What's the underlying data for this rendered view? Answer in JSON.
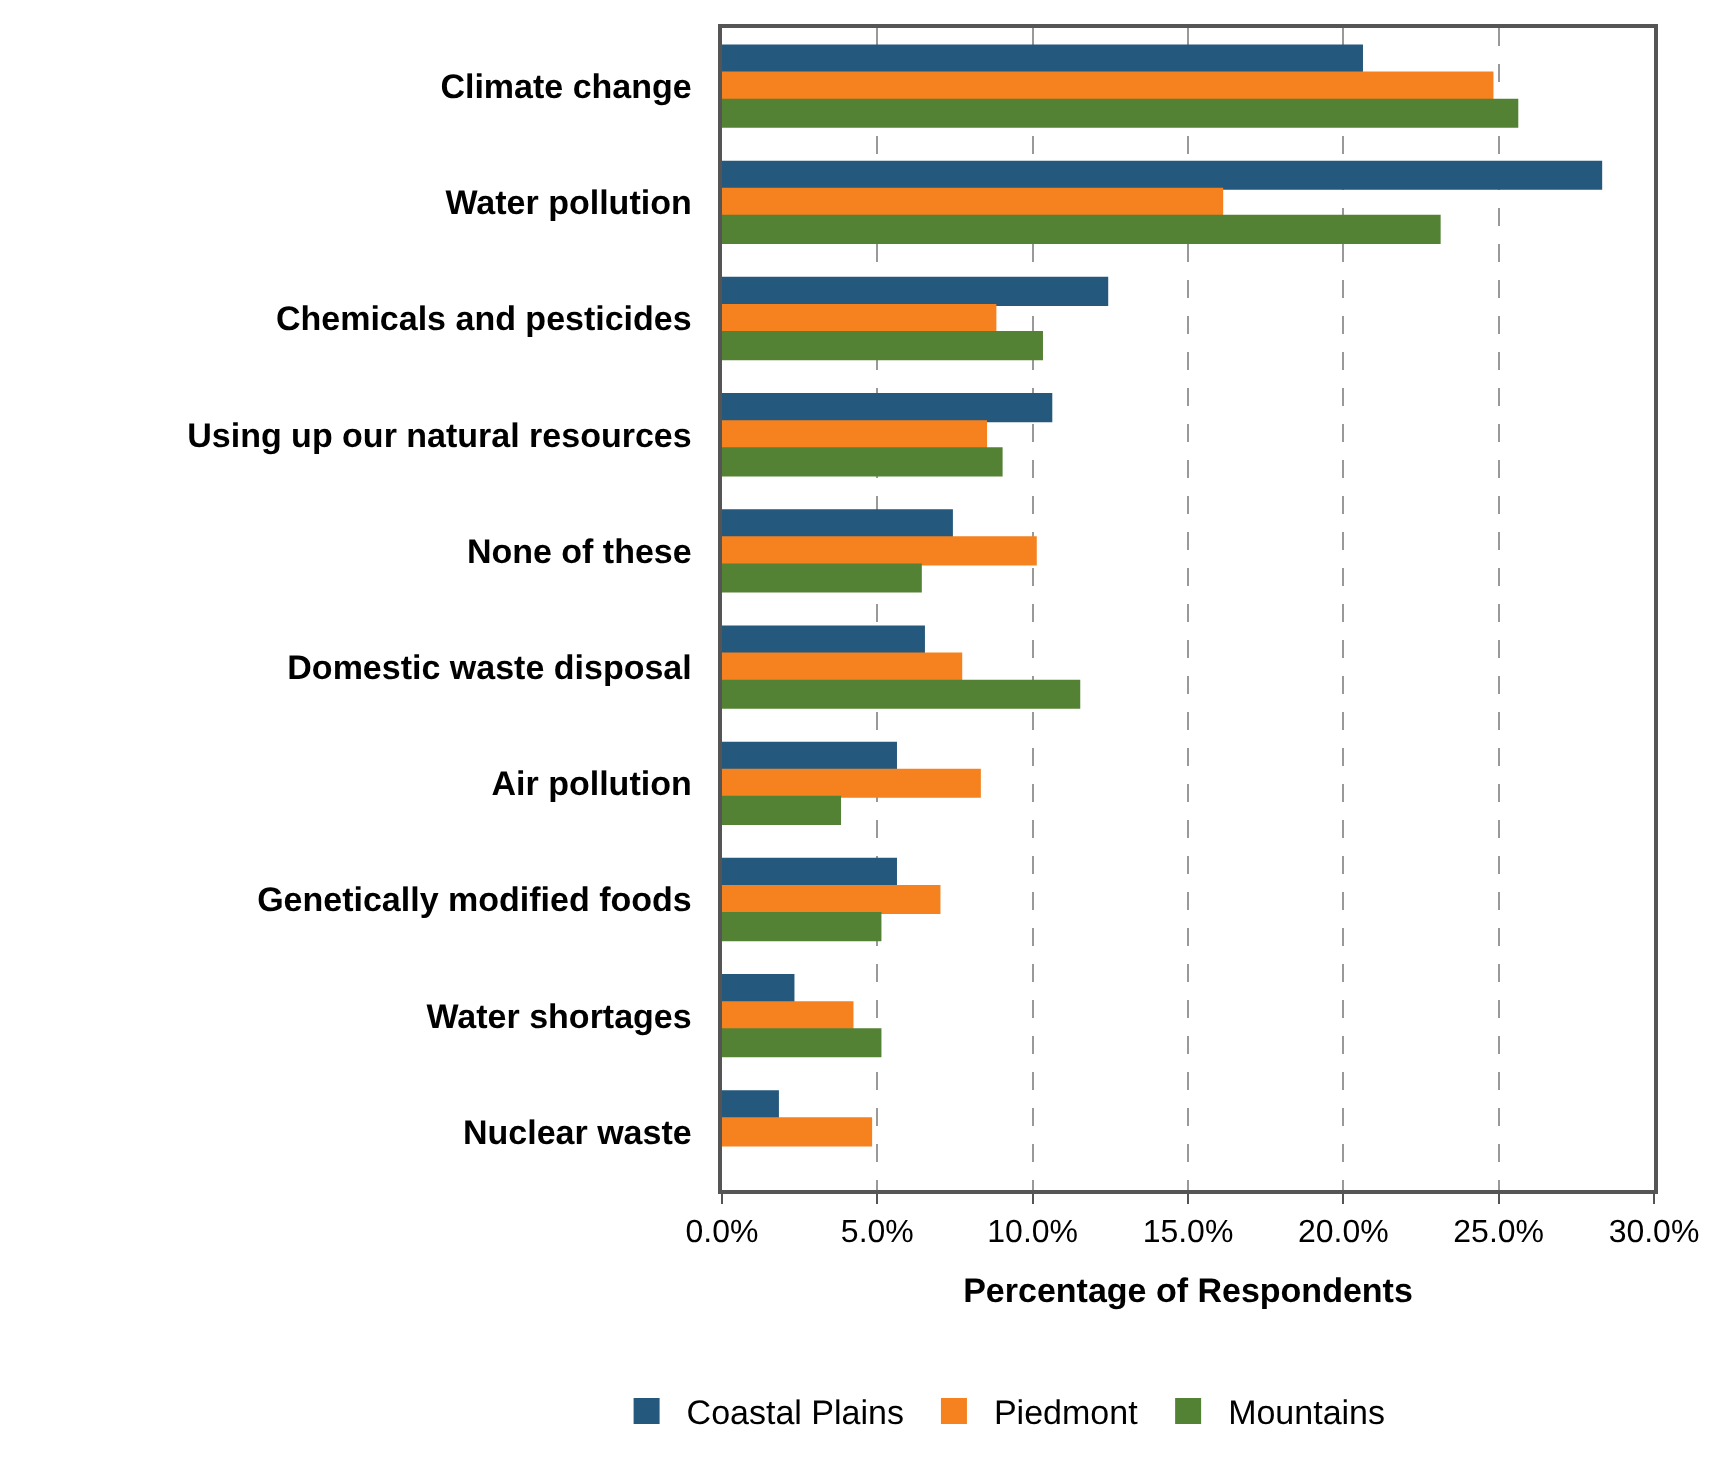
{
  "chart_data": {
    "type": "bar",
    "orientation": "horizontal",
    "xlabel": "Percentage of Respondents",
    "categories": [
      "Climate change",
      "Water pollution",
      "Chemicals and pesticides",
      "Using up our natural resources",
      "None of these",
      "Domestic waste disposal",
      "Air pollution",
      "Genetically modified foods",
      "Water shortages",
      "Nuclear waste"
    ],
    "series": [
      {
        "name": "Coastal Plains",
        "color": "#24587c",
        "values": [
          20.6,
          28.3,
          12.4,
          10.6,
          7.4,
          6.5,
          5.6,
          5.6,
          2.3,
          1.8
        ]
      },
      {
        "name": "Piedmont",
        "color": "#f5821f",
        "values": [
          24.8,
          16.1,
          8.8,
          8.5,
          10.1,
          7.7,
          8.3,
          7.0,
          4.2,
          4.8
        ]
      },
      {
        "name": "Mountains",
        "color": "#548235",
        "values": [
          25.6,
          23.1,
          10.3,
          9.0,
          6.4,
          11.5,
          3.8,
          5.1,
          5.1,
          null
        ]
      }
    ],
    "xlim": [
      0,
      30
    ],
    "xticks": [
      {
        "value": 0,
        "label": "0.0%"
      },
      {
        "value": 5,
        "label": "5.0%"
      },
      {
        "value": 10,
        "label": "10.0%"
      },
      {
        "value": 15,
        "label": "15.0%"
      },
      {
        "value": 20,
        "label": "20.0%"
      },
      {
        "value": 25,
        "label": "25.0%"
      },
      {
        "value": 30,
        "label": "30.0%"
      }
    ],
    "grid": "x",
    "legend": "bottom"
  }
}
